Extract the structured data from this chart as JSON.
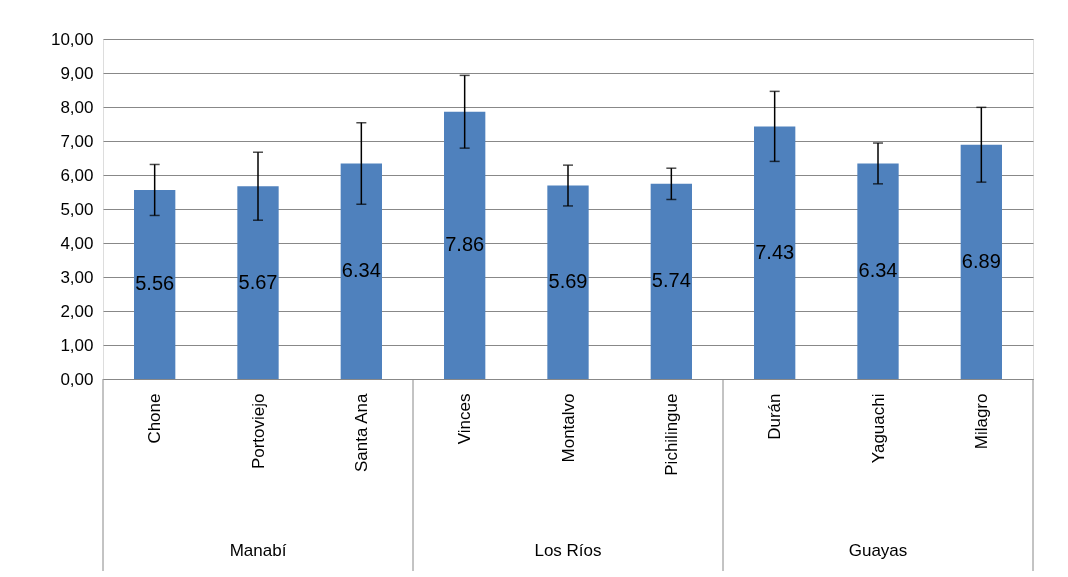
{
  "chart_data": {
    "type": "bar",
    "categories": [
      "Chone",
      "Portoviejo",
      "Santa Ana",
      "Vinces",
      "Montalvo",
      "Pichilingue",
      "Durán",
      "Yaguachi",
      "Milagro"
    ],
    "series": [
      {
        "color": "#4f81bd",
        "values": [
          5.56,
          5.67,
          6.34,
          7.86,
          5.69,
          5.74,
          7.43,
          6.34,
          6.89
        ],
        "errors": [
          0.75,
          1.0,
          1.2,
          1.07,
          0.6,
          0.46,
          1.03,
          0.6,
          1.1
        ]
      }
    ],
    "value_labels": [
      "5.56",
      "5.67",
      "6.34",
      "7.86",
      "5.69",
      "5.74",
      "7.43",
      "6.34",
      "6.89"
    ],
    "annotations": [
      "Manabí",
      "Los Ríos",
      "Guayas"
    ],
    "ylim": [
      0,
      10
    ],
    "yticks": [
      {
        "value": 0,
        "label": "0,00"
      },
      {
        "value": 1,
        "label": "1,00"
      },
      {
        "value": 2,
        "label": "2,00"
      },
      {
        "value": 3,
        "label": "3,00"
      },
      {
        "value": 4,
        "label": "4,00"
      },
      {
        "value": 5,
        "label": "5,00"
      },
      {
        "value": 6,
        "label": "6,00"
      },
      {
        "value": 7,
        "label": "7,00"
      },
      {
        "value": 8,
        "label": "8,00"
      },
      {
        "value": 9,
        "label": "9,00"
      },
      {
        "value": 10,
        "label": "10,00"
      }
    ],
    "grid": "y"
  }
}
